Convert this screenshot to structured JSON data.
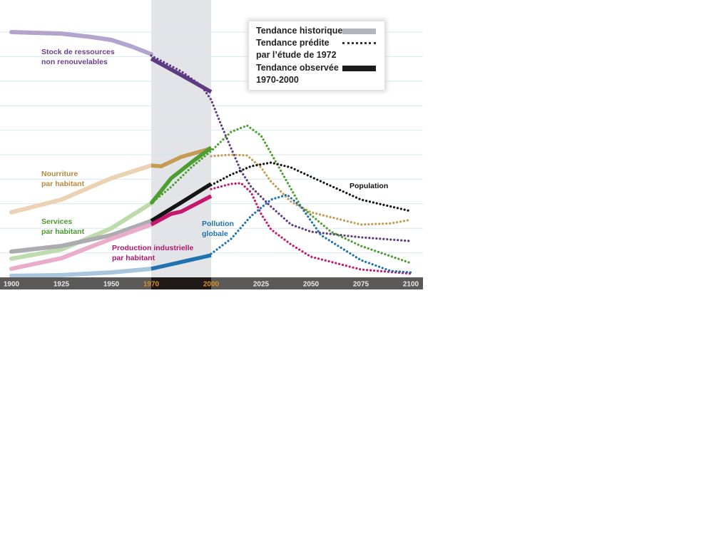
{
  "chart_data": {
    "type": "line",
    "title": "",
    "xlabel": "",
    "ylabel": "",
    "xlim": [
      1900,
      2100
    ],
    "ylim": [
      0,
      10.5
    ],
    "grid": true,
    "x_ticks": [
      1900,
      1925,
      1950,
      1970,
      2000,
      2025,
      2050,
      2075,
      2100
    ],
    "highlight_ticks": [
      1970,
      2000
    ],
    "observed_period": [
      1970,
      2000
    ],
    "legend": {
      "placement": "top-right",
      "historic": "Tendance historique",
      "predicted_1": "Tendance prédite",
      "predicted_2": "par l’étude de 1972",
      "observed_1": "Tendance observée",
      "observed_2": "1970-2000"
    },
    "series": [
      {
        "key": "resources",
        "label": [
          "Stock de ressources",
          "non renouvelables"
        ],
        "color": "#5e3a82",
        "light": "#b2a4cc",
        "label_color": "#6a3f8c",
        "historic": [
          [
            1900,
            10.0
          ],
          [
            1925,
            9.94
          ],
          [
            1940,
            9.8
          ],
          [
            1950,
            9.68
          ],
          [
            1960,
            9.42
          ],
          [
            1970,
            9.1
          ]
        ],
        "observed": [
          [
            1970,
            8.92
          ],
          [
            1985,
            8.25
          ],
          [
            2000,
            7.56
          ]
        ],
        "predicted": [
          [
            1970,
            9.04
          ],
          [
            1985,
            8.4
          ],
          [
            1995,
            7.82
          ],
          [
            2000,
            7.24
          ],
          [
            2005,
            6.22
          ],
          [
            2010,
            5.26
          ],
          [
            2015,
            4.33
          ],
          [
            2020,
            3.69
          ],
          [
            2030,
            2.88
          ],
          [
            2040,
            2.15
          ],
          [
            2050,
            1.86
          ],
          [
            2075,
            1.63
          ],
          [
            2100,
            1.48
          ]
        ]
      },
      {
        "key": "food",
        "label": [
          "Nourriture",
          "par habitant"
        ],
        "color": "#c49a55",
        "light": "#ead2b2",
        "label_color": "#b8893e",
        "historic": [
          [
            1900,
            2.65
          ],
          [
            1925,
            3.17
          ],
          [
            1950,
            4.04
          ],
          [
            1970,
            4.56
          ]
        ],
        "observed": [
          [
            1970,
            4.56
          ],
          [
            1975,
            4.53
          ],
          [
            1985,
            4.91
          ],
          [
            2000,
            5.26
          ]
        ],
        "predicted": [
          [
            2000,
            4.94
          ],
          [
            2010,
            5.0
          ],
          [
            2018,
            4.97
          ],
          [
            2025,
            4.48
          ],
          [
            2030,
            3.9
          ],
          [
            2040,
            3.08
          ],
          [
            2050,
            2.65
          ],
          [
            2075,
            2.15
          ],
          [
            2090,
            2.2
          ],
          [
            2100,
            2.35
          ]
        ]
      },
      {
        "key": "services",
        "label": [
          "Services",
          "par habitant"
        ],
        "color": "#4d9e30",
        "light": "#bddbab",
        "label_color": "#4a9a2e",
        "historic": [
          [
            1900,
            0.76
          ],
          [
            1925,
            1.13
          ],
          [
            1950,
            2.0
          ],
          [
            1970,
            3.02
          ]
        ],
        "observed": [
          [
            1970,
            3.02
          ],
          [
            1980,
            4.04
          ],
          [
            1990,
            4.68
          ],
          [
            2000,
            5.29
          ]
        ],
        "predicted": [
          [
            1970,
            3.02
          ],
          [
            1980,
            3.69
          ],
          [
            1990,
            4.48
          ],
          [
            2000,
            5.15
          ],
          [
            2010,
            5.93
          ],
          [
            2018,
            6.19
          ],
          [
            2025,
            5.78
          ],
          [
            2035,
            4.33
          ],
          [
            2045,
            2.88
          ],
          [
            2060,
            1.86
          ],
          [
            2075,
            1.28
          ],
          [
            2100,
            0.58
          ]
        ]
      },
      {
        "key": "population",
        "label": [
          "Population"
        ],
        "color": "#141414",
        "light": "#ababb0",
        "label_color": "#111111",
        "historic": [
          [
            1900,
            1.05
          ],
          [
            1925,
            1.28
          ],
          [
            1950,
            1.72
          ],
          [
            1970,
            2.3
          ]
        ],
        "observed": [
          [
            1970,
            2.3
          ],
          [
            1985,
            3.05
          ],
          [
            2000,
            3.81
          ]
        ],
        "predicted": [
          [
            2000,
            3.76
          ],
          [
            2010,
            4.19
          ],
          [
            2020,
            4.53
          ],
          [
            2030,
            4.68
          ],
          [
            2040,
            4.48
          ],
          [
            2050,
            4.1
          ],
          [
            2075,
            3.17
          ],
          [
            2100,
            2.7
          ]
        ]
      },
      {
        "key": "industrial",
        "label": [
          "Production industrielle",
          "par habitant"
        ],
        "color": "#c4186f",
        "light": "#eaaccb",
        "label_color": "#b5146a",
        "historic": [
          [
            1900,
            0.35
          ],
          [
            1925,
            0.78
          ],
          [
            1950,
            1.57
          ],
          [
            1970,
            2.15
          ]
        ],
        "observed": [
          [
            1970,
            2.15
          ],
          [
            1980,
            2.59
          ],
          [
            1985,
            2.68
          ],
          [
            2000,
            3.31
          ]
        ],
        "predicted": [
          [
            2000,
            3.6
          ],
          [
            2010,
            3.81
          ],
          [
            2015,
            3.84
          ],
          [
            2020,
            3.46
          ],
          [
            2025,
            2.59
          ],
          [
            2030,
            1.95
          ],
          [
            2040,
            1.34
          ],
          [
            2050,
            0.84
          ],
          [
            2075,
            0.32
          ],
          [
            2100,
            0.15
          ]
        ]
      },
      {
        "key": "pollution",
        "label": [
          "Pollution",
          "globale"
        ],
        "color": "#1f72ad",
        "light": "#a9c6df",
        "label_color": "#1f72ad",
        "historic": [
          [
            1900,
            0.06
          ],
          [
            1925,
            0.09
          ],
          [
            1950,
            0.2
          ],
          [
            1970,
            0.35
          ]
        ],
        "observed": [
          [
            1970,
            0.35
          ],
          [
            2000,
            0.9
          ]
        ],
        "predicted": [
          [
            2000,
            0.96
          ],
          [
            2010,
            1.57
          ],
          [
            2020,
            2.5
          ],
          [
            2030,
            3.17
          ],
          [
            2038,
            3.37
          ],
          [
            2045,
            2.88
          ],
          [
            2055,
            1.72
          ],
          [
            2075,
            0.7
          ],
          [
            2090,
            0.26
          ],
          [
            2100,
            0.2
          ]
        ]
      }
    ]
  }
}
